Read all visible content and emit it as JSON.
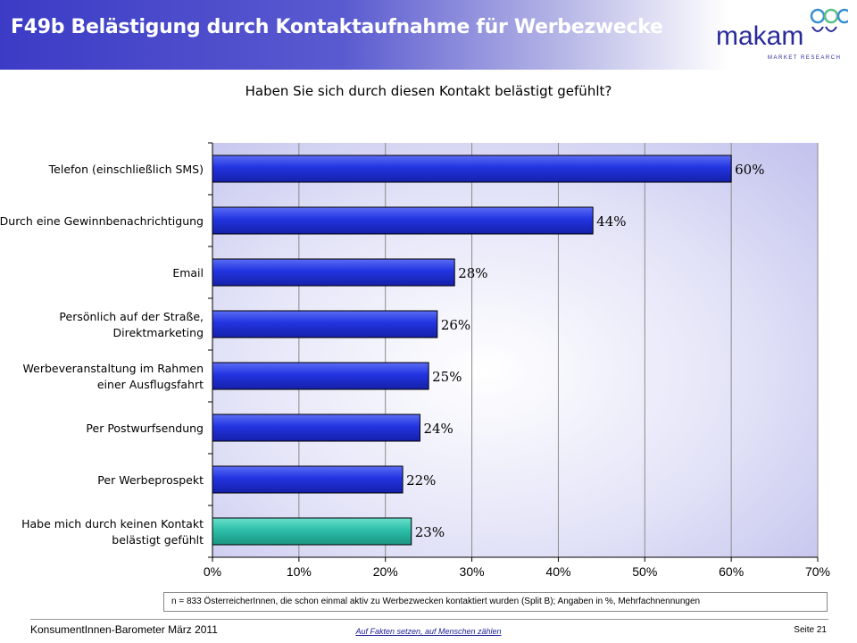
{
  "header": {
    "title": "F49b Belästigung durch Kontaktaufnahme für Werbezwecke"
  },
  "logo": {
    "brand": "makam",
    "tagline": "MARKET RESEARCH"
  },
  "colors": {
    "bar": "#1f2fdc",
    "bar_highlight": "#2dbfaa",
    "header": "#3b3bc6"
  },
  "chart_data": {
    "type": "bar",
    "orientation": "horizontal",
    "title": "Haben Sie sich durch diesen Kontakt belästigt gefühlt?",
    "categories": [
      [
        "Telefon (einschließlich SMS)"
      ],
      [
        "Durch eine Gewinnbenachrichtigung"
      ],
      [
        "Email"
      ],
      [
        "Persönlich auf der Straße,",
        "Direktmarketing"
      ],
      [
        "Werbeveranstaltung im Rahmen",
        "einer Ausflugsfahrt"
      ],
      [
        "Per Postwurfsendung"
      ],
      [
        "Per Werbeprospekt"
      ],
      [
        "Habe mich durch keinen Kontakt",
        "belästigt gefühlt"
      ]
    ],
    "values": [
      60,
      44,
      28,
      26,
      25,
      24,
      22,
      23
    ],
    "value_labels": [
      "60%",
      "44%",
      "28%",
      "26%",
      "25%",
      "24%",
      "22%",
      "23%"
    ],
    "highlight_index": 7,
    "xlim": [
      0,
      70
    ],
    "xticks": [
      0,
      10,
      20,
      30,
      40,
      50,
      60,
      70
    ],
    "xtick_labels": [
      "0%",
      "10%",
      "20%",
      "30%",
      "40%",
      "50%",
      "60%",
      "70%"
    ],
    "grid": true
  },
  "note": "n = 833 ÖsterreicherInnen, die schon einmal aktiv zu Werbezwecken kontaktiert wurden (Split B); Angaben in %, Mehrfachnennungen",
  "footer": {
    "left": "KonsumentInnen-Barometer März 2011",
    "middle": "Auf Fakten setzen, auf Menschen zählen",
    "right": "Seite 21"
  }
}
